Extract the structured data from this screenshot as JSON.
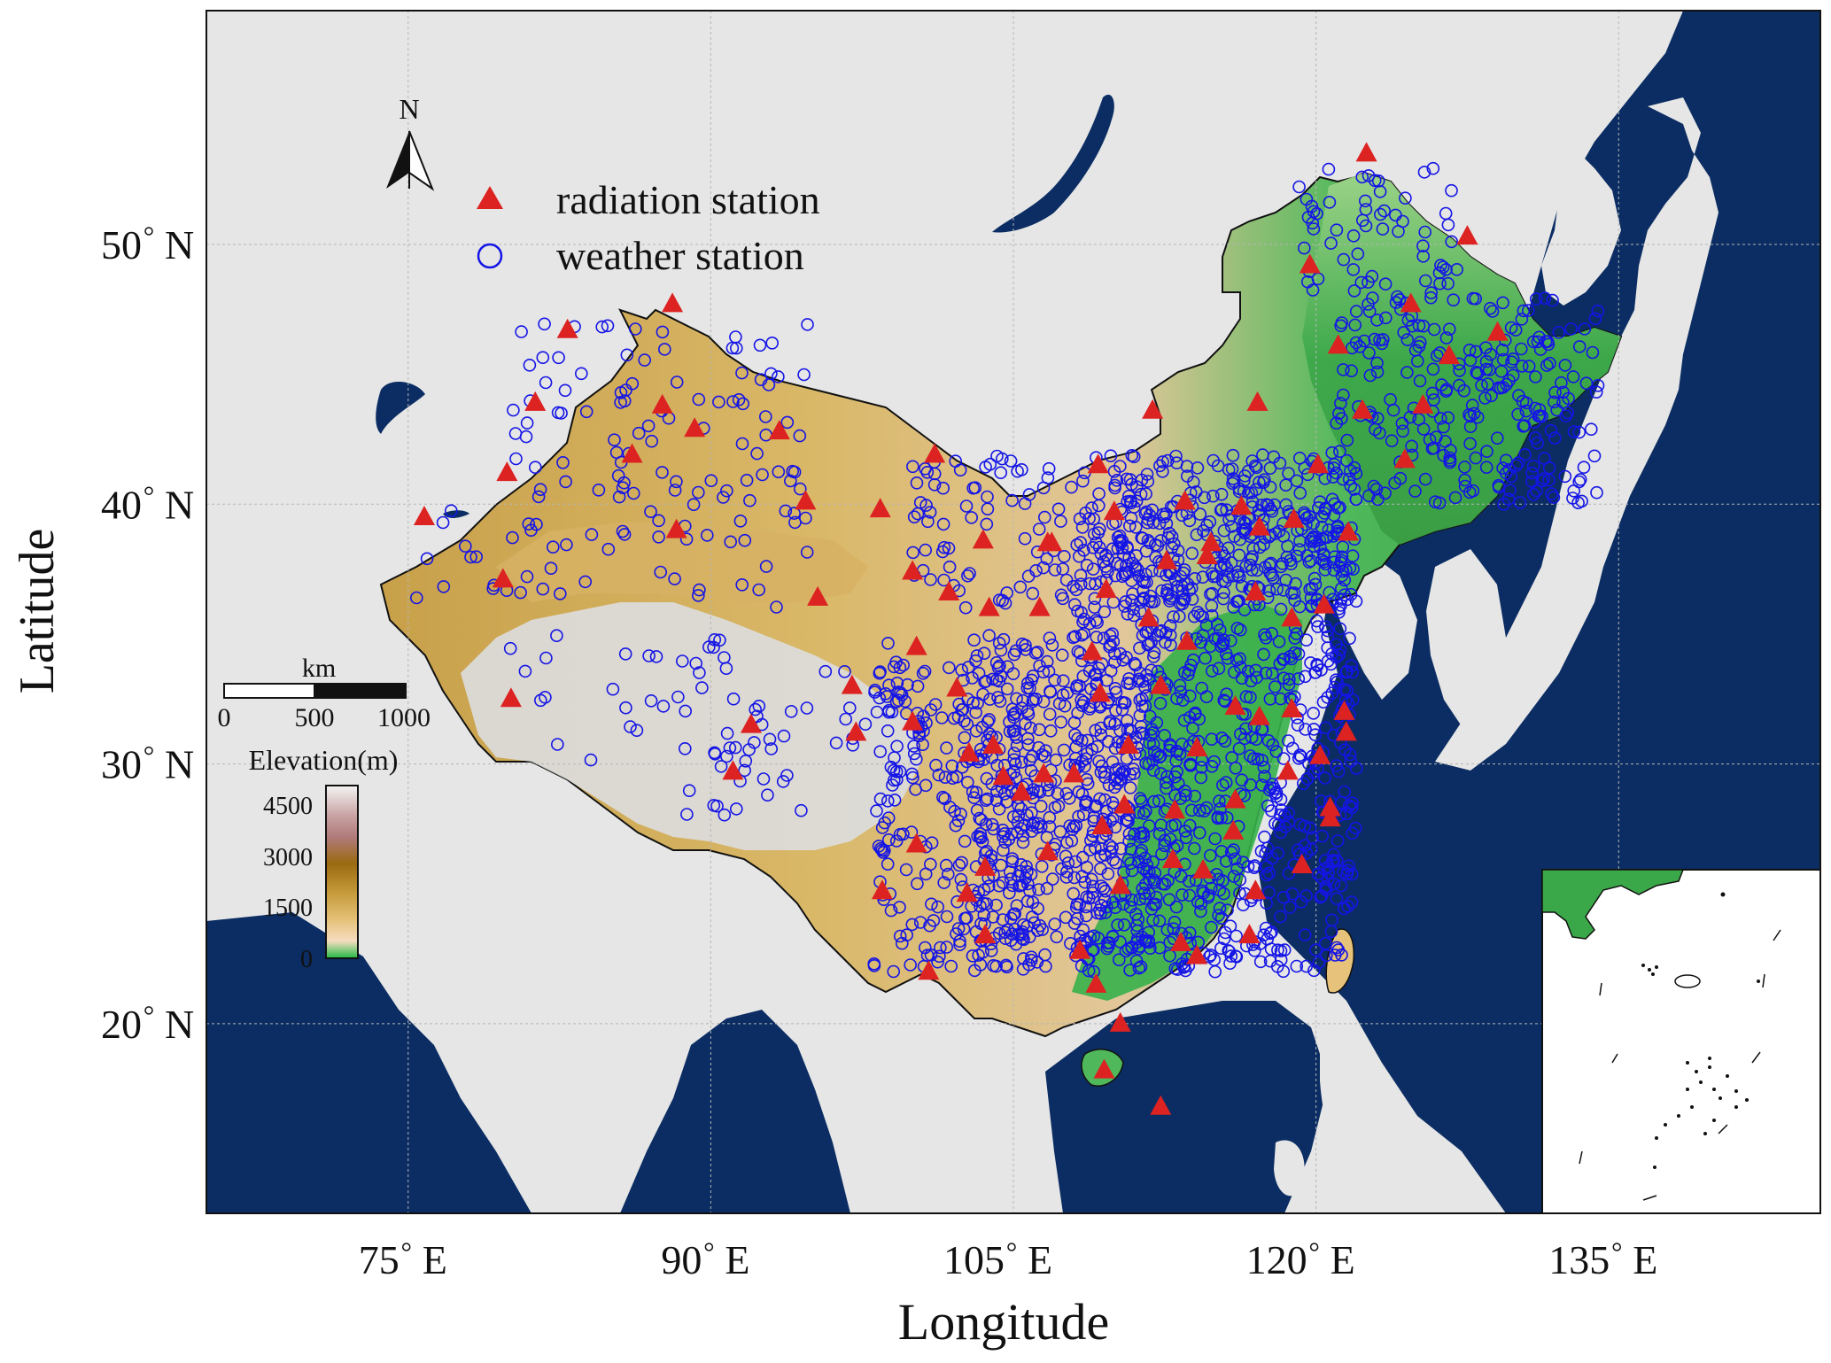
{
  "axes": {
    "xlabel": "Longitude",
    "ylabel": "Latitude",
    "x_ticks": [
      {
        "deg": "75",
        "dir": "E",
        "lon": 75
      },
      {
        "deg": "90",
        "dir": "E",
        "lon": 90
      },
      {
        "deg": "105",
        "dir": "E",
        "lon": 105
      },
      {
        "deg": "120",
        "dir": "E",
        "lon": 120
      },
      {
        "deg": "135",
        "dir": "E",
        "lon": 135
      }
    ],
    "y_ticks": [
      {
        "deg": "50",
        "dir": "N",
        "lat": 50
      },
      {
        "deg": "40",
        "dir": "N",
        "lat": 40
      },
      {
        "deg": "30",
        "dir": "N",
        "lat": 30
      },
      {
        "deg": "20",
        "dir": "N",
        "lat": 20
      }
    ],
    "xlim": [
      65,
      145
    ],
    "ylim": [
      12.7,
      59.0
    ],
    "grid": true
  },
  "legend": {
    "radiation_label": "radiation station",
    "weather_label": "weather station",
    "radiation_color": "#dd2222",
    "weather_color": "#1515e6"
  },
  "north_arrow": {
    "label": "N"
  },
  "scale_bar": {
    "unit": "km",
    "labels": [
      "0",
      "500",
      "1000"
    ]
  },
  "elevation_legend": {
    "title": "Elevation(m)",
    "ticks": [
      "4500",
      "3000",
      "1500",
      "0"
    ],
    "colors": [
      "#f2f2f2",
      "#b07a7a",
      "#9a6a10",
      "#c59a3a",
      "#f2d8a8",
      "#2ec24a"
    ]
  },
  "colors": {
    "ocean": "#0b2d63",
    "land": "#e6e6e6",
    "china_low": "#2eb04a",
    "china_mid": "#d9b465",
    "plateau": "#dcdcdc"
  },
  "chart_data": {
    "type": "scatter",
    "series": [
      {
        "name": "radiation station",
        "marker": "triangle",
        "points": [
          [
            122.5,
            53.5
          ],
          [
            119.7,
            49.2
          ],
          [
            127.5,
            50.3
          ],
          [
            124.7,
            47.7
          ],
          [
            129.0,
            46.6
          ],
          [
            125.3,
            43.8
          ],
          [
            122.3,
            43.6
          ],
          [
            124.4,
            41.7
          ],
          [
            126.6,
            45.7
          ],
          [
            121.1,
            46.1
          ],
          [
            117.1,
            43.9
          ],
          [
            111.9,
            43.6
          ],
          [
            120.1,
            41.5
          ],
          [
            121.6,
            38.9
          ],
          [
            116.3,
            39.9
          ],
          [
            113.5,
            40.1
          ],
          [
            110.0,
            39.7
          ],
          [
            109.2,
            41.5
          ],
          [
            106.7,
            38.5
          ],
          [
            103.5,
            38.6
          ],
          [
            101.1,
            41.9
          ],
          [
            98.4,
            39.8
          ],
          [
            94.7,
            40.1
          ],
          [
            93.4,
            42.8
          ],
          [
            88.3,
            39.0
          ],
          [
            89.2,
            42.9
          ],
          [
            86.1,
            41.9
          ],
          [
            87.6,
            43.8
          ],
          [
            88.1,
            47.7
          ],
          [
            82.9,
            46.7
          ],
          [
            81.3,
            43.9
          ],
          [
            79.9,
            41.2
          ],
          [
            75.8,
            39.5
          ],
          [
            79.7,
            37.1
          ],
          [
            80.1,
            32.5
          ],
          [
            91.1,
            29.7
          ],
          [
            92.0,
            31.5
          ],
          [
            97.2,
            31.2
          ],
          [
            97.0,
            33.0
          ],
          [
            100.0,
            31.6
          ],
          [
            100.2,
            34.5
          ],
          [
            100.0,
            37.4
          ],
          [
            95.3,
            36.4
          ],
          [
            101.8,
            36.6
          ],
          [
            103.8,
            36.0
          ],
          [
            106.3,
            36.0
          ],
          [
            106.9,
            38.5
          ],
          [
            109.6,
            36.7
          ],
          [
            108.9,
            34.3
          ],
          [
            111.7,
            35.6
          ],
          [
            112.6,
            37.8
          ],
          [
            114.6,
            38.0
          ],
          [
            117.0,
            36.6
          ],
          [
            118.8,
            35.6
          ],
          [
            117.2,
            39.1
          ],
          [
            118.9,
            39.4
          ],
          [
            120.4,
            36.1
          ],
          [
            113.6,
            34.7
          ],
          [
            112.3,
            33.0
          ],
          [
            109.3,
            32.7
          ],
          [
            104.0,
            30.7
          ],
          [
            105.4,
            28.9
          ],
          [
            102.2,
            32.9
          ],
          [
            106.5,
            29.6
          ],
          [
            108.0,
            29.6
          ],
          [
            110.7,
            30.7
          ],
          [
            114.1,
            30.6
          ],
          [
            116.0,
            32.2
          ],
          [
            118.8,
            32.1
          ],
          [
            117.2,
            31.8
          ],
          [
            121.5,
            31.2
          ],
          [
            121.4,
            32.0
          ],
          [
            120.2,
            30.3
          ],
          [
            118.6,
            29.7
          ],
          [
            116.0,
            28.6
          ],
          [
            115.9,
            27.4
          ],
          [
            113.0,
            28.2
          ],
          [
            110.5,
            28.4
          ],
          [
            109.4,
            27.6
          ],
          [
            106.7,
            26.6
          ],
          [
            102.7,
            25.0
          ],
          [
            103.6,
            23.4
          ],
          [
            100.2,
            26.9
          ],
          [
            100.8,
            22.0
          ],
          [
            98.5,
            25.1
          ],
          [
            104.5,
            29.5
          ],
          [
            102.8,
            30.4
          ],
          [
            103.6,
            26.0
          ],
          [
            108.3,
            22.8
          ],
          [
            110.3,
            25.3
          ],
          [
            113.3,
            23.1
          ],
          [
            114.1,
            22.6
          ],
          [
            116.7,
            23.4
          ],
          [
            117.0,
            25.1
          ],
          [
            119.3,
            26.1
          ],
          [
            120.7,
            27.9
          ],
          [
            112.9,
            26.3
          ],
          [
            114.4,
            25.9
          ],
          [
            109.1,
            21.5
          ],
          [
            110.3,
            20.0
          ],
          [
            109.5,
            18.2
          ],
          [
            112.3,
            16.8
          ],
          [
            120.7,
            28.3
          ],
          [
            114.8,
            38.5
          ]
        ]
      },
      {
        "name": "weather station",
        "marker": "circle"
      }
    ]
  }
}
